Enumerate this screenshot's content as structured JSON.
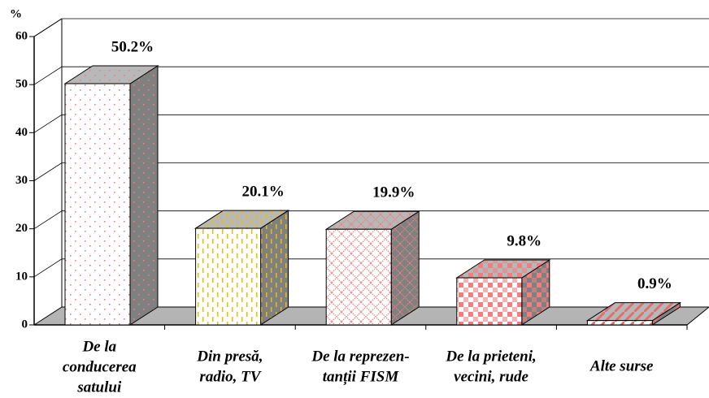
{
  "chart_data": {
    "type": "bar3d",
    "y_label": "%",
    "categories": [
      [
        "De la",
        "conducerea",
        "satului"
      ],
      [
        "Din presă,",
        "radio, TV"
      ],
      [
        "De la reprezen-",
        "tanții FISM"
      ],
      [
        "De la prieteni,",
        "vecini, rude"
      ],
      [
        "Alte surse"
      ]
    ],
    "values": [
      50.2,
      20.1,
      19.9,
      9.8,
      0.9
    ],
    "value_labels": [
      "50.2%",
      "20.1%",
      "19.9%",
      "9.8%",
      "0.9%"
    ],
    "colors": [
      "#f08080",
      "#e8c000",
      "#f08080",
      "#f08080",
      "#e07070"
    ],
    "ylim": [
      0,
      60
    ],
    "yticks": [
      0,
      10,
      20,
      30,
      40,
      50,
      60
    ],
    "grid": true
  }
}
